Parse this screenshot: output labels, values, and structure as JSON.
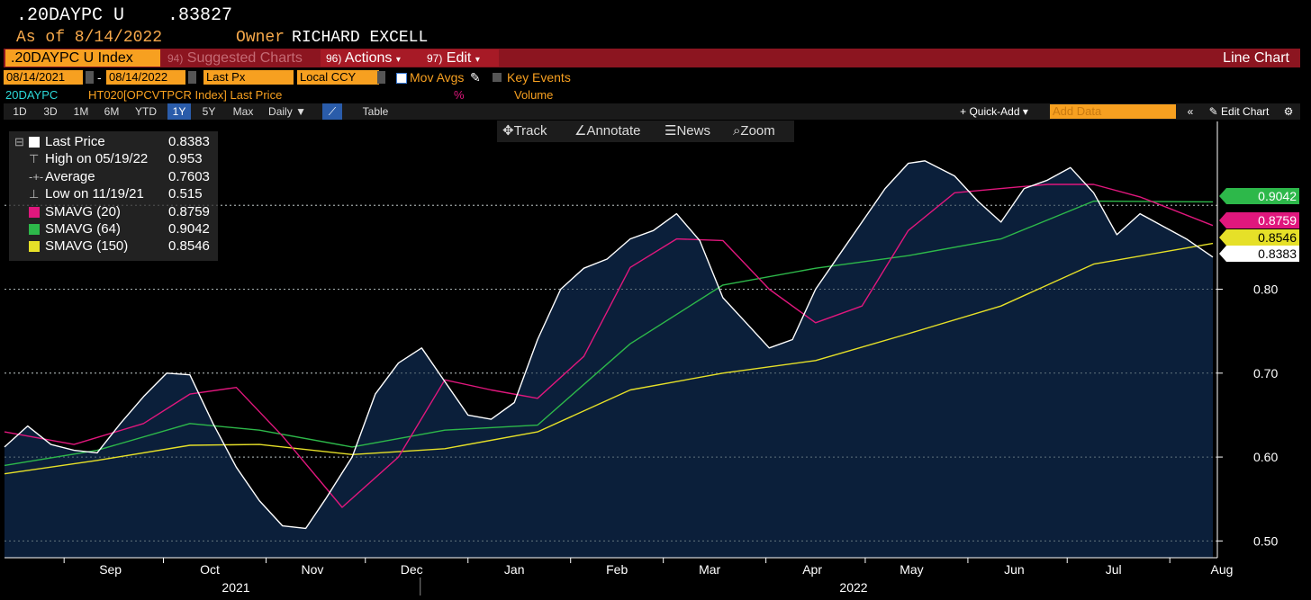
{
  "header": {
    "ticker_line": ".20DAYPC U",
    "last_value": ".83827",
    "as_of": "As of 8/14/2022",
    "owner_label": "Owner",
    "owner_name": "RICHARD EXCELL"
  },
  "toolbar": {
    "security": ".20DAYPC U Index",
    "suggested": "Suggested Charts",
    "suggested_num": "94)",
    "actions": "Actions",
    "actions_num": "96)",
    "edit": "Edit",
    "edit_num": "97)",
    "chart_type": "Line Chart"
  },
  "settings": {
    "start_date": "08/14/2021",
    "end_date": "08/14/2022",
    "price_field": "Last Px",
    "currency": "Local CCY",
    "mov_avgs": "Mov Avgs",
    "key_events": "Key Events"
  },
  "info_row": {
    "ticker": "20DAYPC",
    "description": "HT020[OPCVTPCR Index] Last Price",
    "pct": "%",
    "volume": "Volume"
  },
  "ranges": [
    "1D",
    "3D",
    "1M",
    "6M",
    "YTD",
    "1Y",
    "5Y",
    "Max"
  ],
  "selected_range": "1Y",
  "frequency": "Daily",
  "table_label": "Table",
  "quick_add": "+ Quick-Add",
  "add_data_placeholder": "Add Data",
  "edit_chart": "Edit Chart",
  "tools": {
    "track": "Track",
    "annotate": "Annotate",
    "news": "News",
    "zoom": "Zoom"
  },
  "legend": {
    "last_price": {
      "label": "Last Price",
      "value": "0.8383"
    },
    "high": {
      "label": "High on 05/19/22",
      "value": "0.953"
    },
    "average": {
      "label": "Average",
      "value": "0.7603"
    },
    "low": {
      "label": "Low on 11/19/21",
      "value": "0.515"
    },
    "sma20": {
      "label": "SMAVG (20)",
      "value": "0.8759"
    },
    "sma64": {
      "label": "SMAVG (64)",
      "value": "0.9042"
    },
    "sma150": {
      "label": "SMAVG (150)",
      "value": "0.8546"
    }
  },
  "colors": {
    "background": "#000000",
    "area_fill": "#0b1f3a",
    "price": "#ffffff",
    "sma20": "#e0177d",
    "sma64": "#2db84a",
    "sma150": "#e6e028",
    "accent": "#f7a020",
    "toolbar_red": "#8c1520"
  },
  "chart_data": {
    "type": "area",
    "x_months": [
      "Sep",
      "Oct",
      "Nov",
      "Dec",
      "Jan",
      "Feb",
      "Mar",
      "Apr",
      "May",
      "Jun",
      "Jul",
      "Aug"
    ],
    "year_labels": [
      "2021",
      "2022"
    ],
    "ylim": [
      0.48,
      1.0
    ],
    "yticks": [
      0.5,
      0.6,
      0.7,
      0.8
    ],
    "ytick_labels": [
      "0.50",
      "0.60",
      "0.70",
      "0.80"
    ],
    "date_range": [
      "2021-08-14",
      "2022-08-14"
    ],
    "series": [
      {
        "name": "Last Price",
        "color": "#ffffff",
        "dates": [
          "2021-08-14",
          "2021-08-21",
          "2021-08-28",
          "2021-09-04",
          "2021-09-11",
          "2021-09-18",
          "2021-09-25",
          "2021-10-02",
          "2021-10-09",
          "2021-10-16",
          "2021-10-23",
          "2021-10-30",
          "2021-11-06",
          "2021-11-13",
          "2021-11-19",
          "2021-11-27",
          "2021-12-04",
          "2021-12-11",
          "2021-12-18",
          "2021-12-25",
          "2022-01-01",
          "2022-01-08",
          "2022-01-15",
          "2022-01-22",
          "2022-01-29",
          "2022-02-05",
          "2022-02-12",
          "2022-02-19",
          "2022-02-26",
          "2022-03-05",
          "2022-03-12",
          "2022-03-19",
          "2022-03-26",
          "2022-04-02",
          "2022-04-09",
          "2022-04-16",
          "2022-04-23",
          "2022-04-30",
          "2022-05-07",
          "2022-05-14",
          "2022-05-19",
          "2022-05-28",
          "2022-06-04",
          "2022-06-11",
          "2022-06-18",
          "2022-06-25",
          "2022-07-02",
          "2022-07-09",
          "2022-07-16",
          "2022-07-23",
          "2022-07-30",
          "2022-08-06",
          "2022-08-14"
        ],
        "values": [
          0.612,
          0.637,
          0.615,
          0.608,
          0.605,
          0.64,
          0.672,
          0.7,
          0.698,
          0.64,
          0.588,
          0.548,
          0.518,
          0.515,
          0.55,
          0.6,
          0.675,
          0.712,
          0.73,
          0.69,
          0.65,
          0.645,
          0.665,
          0.74,
          0.8,
          0.825,
          0.836,
          0.86,
          0.87,
          0.89,
          0.858,
          0.79,
          0.76,
          0.73,
          0.74,
          0.8,
          0.84,
          0.88,
          0.92,
          0.95,
          0.953,
          0.935,
          0.905,
          0.88,
          0.92,
          0.93,
          0.945,
          0.915,
          0.865,
          0.89,
          0.875,
          0.86,
          0.8383
        ]
      },
      {
        "name": "SMAVG (20)",
        "color": "#e0177d",
        "dates": [
          "2021-08-14",
          "2021-09-04",
          "2021-09-25",
          "2021-10-09",
          "2021-10-23",
          "2021-11-06",
          "2021-11-24",
          "2021-12-11",
          "2021-12-25",
          "2022-01-08",
          "2022-01-22",
          "2022-02-05",
          "2022-02-19",
          "2022-03-05",
          "2022-03-19",
          "2022-04-02",
          "2022-04-16",
          "2022-04-30",
          "2022-05-14",
          "2022-05-28",
          "2022-06-11",
          "2022-06-25",
          "2022-07-09",
          "2022-07-23",
          "2022-08-14"
        ],
        "values": [
          0.63,
          0.615,
          0.64,
          0.675,
          0.683,
          0.625,
          0.54,
          0.6,
          0.692,
          0.68,
          0.67,
          0.72,
          0.826,
          0.86,
          0.858,
          0.8,
          0.76,
          0.78,
          0.87,
          0.915,
          0.92,
          0.925,
          0.925,
          0.91,
          0.8759
        ]
      },
      {
        "name": "SMAVG (64)",
        "color": "#2db84a",
        "dates": [
          "2021-08-14",
          "2021-09-11",
          "2021-10-09",
          "2021-10-30",
          "2021-11-27",
          "2021-12-25",
          "2022-01-22",
          "2022-02-19",
          "2022-03-19",
          "2022-04-16",
          "2022-05-14",
          "2022-06-11",
          "2022-07-09",
          "2022-08-14"
        ],
        "values": [
          0.59,
          0.608,
          0.64,
          0.632,
          0.612,
          0.632,
          0.638,
          0.735,
          0.805,
          0.825,
          0.84,
          0.86,
          0.905,
          0.9042
        ]
      },
      {
        "name": "SMAVG (150)",
        "color": "#e6e028",
        "dates": [
          "2021-08-14",
          "2021-09-11",
          "2021-10-09",
          "2021-10-30",
          "2021-11-27",
          "2021-12-25",
          "2022-01-22",
          "2022-02-19",
          "2022-03-19",
          "2022-04-16",
          "2022-05-14",
          "2022-06-11",
          "2022-07-09",
          "2022-08-14"
        ],
        "values": [
          0.58,
          0.596,
          0.614,
          0.615,
          0.603,
          0.61,
          0.63,
          0.68,
          0.7,
          0.715,
          0.747,
          0.78,
          0.83,
          0.8546
        ]
      }
    ],
    "right_labels": [
      {
        "text": "0.9042",
        "value": 0.9042,
        "color": "#2db84a"
      },
      {
        "text": "0.8759",
        "value": 0.8759,
        "color": "#e0177d"
      },
      {
        "text": "0.8546",
        "value": 0.8546,
        "color": "#e6e028"
      },
      {
        "text": "0.8383",
        "value": 0.8383,
        "color": "#ffffff"
      }
    ]
  }
}
